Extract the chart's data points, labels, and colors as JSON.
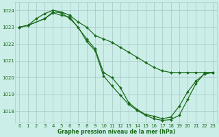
{
  "title": "Graphe pression niveau de la mer (hPa)",
  "bg_color": "#cceee8",
  "grid_color": "#aacccc",
  "line_color": "#1a6b1a",
  "marker_color": "#1a6b1a",
  "xlim": [
    -0.5,
    23.5
  ],
  "ylim": [
    1017.3,
    1024.5
  ],
  "yticks": [
    1018,
    1019,
    1020,
    1021,
    1022,
    1023,
    1024
  ],
  "xticks": [
    0,
    1,
    2,
    3,
    4,
    5,
    6,
    7,
    8,
    9,
    10,
    11,
    12,
    13,
    14,
    15,
    16,
    17,
    18,
    19,
    20,
    21,
    22,
    23
  ],
  "line1_x": [
    0,
    1,
    2,
    3,
    4,
    5,
    6,
    7,
    8,
    9,
    10,
    11,
    12,
    13,
    14,
    15,
    16,
    17,
    18,
    19,
    20,
    21,
    22,
    23
  ],
  "line1_y": [
    1023.0,
    1023.1,
    1023.5,
    1023.8,
    1024.0,
    1023.9,
    1023.7,
    1023.3,
    1023.0,
    1022.5,
    1022.3,
    1022.1,
    1021.8,
    1021.5,
    1021.2,
    1020.9,
    1020.6,
    1020.4,
    1020.3,
    1020.3,
    1020.3,
    1020.3,
    1020.3,
    1020.3
  ],
  "line2_x": [
    0,
    1,
    3,
    4,
    5,
    6,
    8,
    9,
    10,
    11,
    12,
    13,
    14,
    15,
    16,
    17,
    18,
    19,
    20,
    21,
    22,
    23
  ],
  "line2_y": [
    1023.0,
    1023.1,
    1023.5,
    1023.85,
    1023.7,
    1023.6,
    1022.3,
    1021.7,
    1020.3,
    1020.0,
    1019.4,
    1018.5,
    1018.1,
    1017.8,
    1017.7,
    1017.55,
    1017.65,
    1018.3,
    1019.15,
    1019.8,
    1020.2,
    1020.3
  ],
  "line3_x": [
    0,
    1,
    3,
    4,
    5,
    6,
    7,
    8,
    9,
    10,
    11,
    12,
    13,
    14,
    15,
    16,
    17,
    18,
    19,
    20,
    21,
    22,
    23
  ],
  "line3_y": [
    1023.0,
    1023.1,
    1023.5,
    1023.9,
    1023.85,
    1023.5,
    1023.0,
    1022.15,
    1021.6,
    1020.1,
    1019.5,
    1018.95,
    1018.4,
    1018.05,
    1017.75,
    1017.55,
    1017.45,
    1017.5,
    1017.75,
    1018.7,
    1019.65,
    1020.25,
    1020.3
  ]
}
